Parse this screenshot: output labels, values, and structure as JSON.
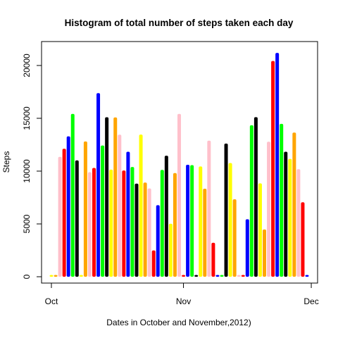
{
  "chart_data": {
    "type": "bar",
    "title": "Histogram of total number of steps taken each day",
    "xlabel": "Dates in October and November,2012)",
    "ylabel": "Steps",
    "ylim": [
      0,
      22000
    ],
    "y_ticks": [
      0,
      5000,
      10000,
      15000,
      20000
    ],
    "x_ticks": [
      {
        "label": "Oct",
        "day": 0
      },
      {
        "label": "Nov",
        "day": 31
      },
      {
        "label": "Dec",
        "day": 61
      }
    ],
    "grid": false,
    "colors": [
      "#ffff00",
      "#ffa500",
      "#ffc0cb",
      "#ff0000",
      "#0000ff",
      "#00ff00",
      "#000000"
    ],
    "categories": [
      "2012-10-01",
      "2012-10-02",
      "2012-10-03",
      "2012-10-04",
      "2012-10-05",
      "2012-10-06",
      "2012-10-07",
      "2012-10-08",
      "2012-10-09",
      "2012-10-10",
      "2012-10-11",
      "2012-10-12",
      "2012-10-13",
      "2012-10-14",
      "2012-10-15",
      "2012-10-16",
      "2012-10-17",
      "2012-10-18",
      "2012-10-19",
      "2012-10-20",
      "2012-10-21",
      "2012-10-22",
      "2012-10-23",
      "2012-10-24",
      "2012-10-25",
      "2012-10-26",
      "2012-10-27",
      "2012-10-28",
      "2012-10-29",
      "2012-10-30",
      "2012-10-31",
      "2012-11-01",
      "2012-11-02",
      "2012-11-03",
      "2012-11-04",
      "2012-11-05",
      "2012-11-06",
      "2012-11-07",
      "2012-11-08",
      "2012-11-09",
      "2012-11-10",
      "2012-11-11",
      "2012-11-12",
      "2012-11-13",
      "2012-11-14",
      "2012-11-15",
      "2012-11-16",
      "2012-11-17",
      "2012-11-18",
      "2012-11-19",
      "2012-11-20",
      "2012-11-21",
      "2012-11-22",
      "2012-11-23",
      "2012-11-24",
      "2012-11-25",
      "2012-11-26",
      "2012-11-27",
      "2012-11-28",
      "2012-11-29",
      "2012-11-30"
    ],
    "values": [
      0,
      126,
      11352,
      12116,
      13294,
      15420,
      11015,
      0,
      12811,
      9900,
      10304,
      17382,
      12426,
      15098,
      10139,
      15084,
      13452,
      10056,
      11829,
      10395,
      8821,
      13460,
      8918,
      8355,
      2492,
      6778,
      10119,
      11458,
      5018,
      9819,
      15414,
      0,
      10600,
      10571,
      0,
      10439,
      8334,
      12883,
      3219,
      0,
      0,
      12608,
      10765,
      7336,
      0,
      41,
      5441,
      14339,
      15110,
      8841,
      4472,
      12787,
      20427,
      21194,
      14478,
      11834,
      11162,
      13646,
      10183,
      7047,
      0
    ]
  }
}
